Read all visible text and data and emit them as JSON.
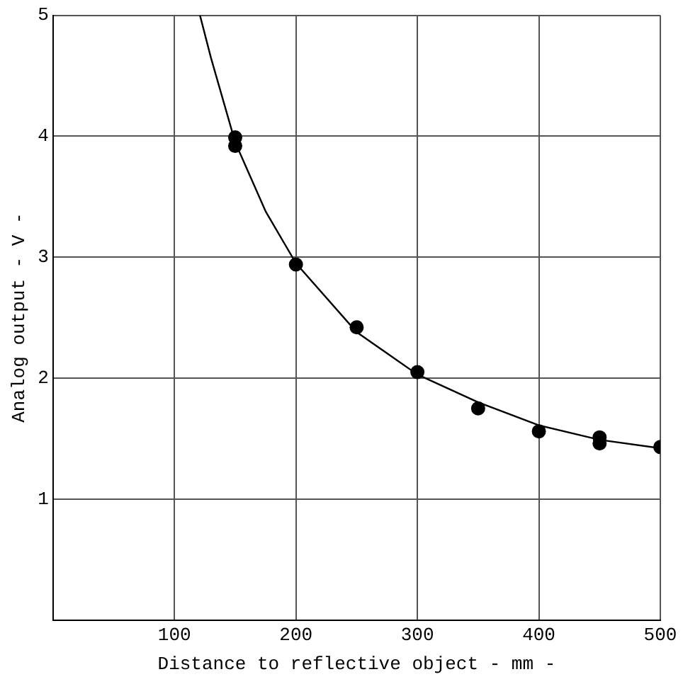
{
  "chart_data": {
    "type": "scatter",
    "xlabel": "Distance to reflective object - mm -",
    "ylabel": "Analog output - V -",
    "xlim": [
      0,
      500
    ],
    "ylim": [
      0,
      5
    ],
    "xticks": [
      100,
      200,
      300,
      400,
      500
    ],
    "yticks": [
      1,
      2,
      3,
      4,
      5
    ],
    "grid": true,
    "legend": false,
    "series": [
      {
        "color": "#000000",
        "marker": "circle",
        "x": [
          150,
          150,
          200,
          250,
          300,
          350,
          400,
          450,
          450,
          500
        ],
        "values": [
          3.99,
          3.92,
          2.94,
          2.42,
          2.05,
          1.75,
          1.56,
          1.51,
          1.46,
          1.43
        ]
      },
      {
        "type": "line",
        "color": "#000000",
        "marker": "none",
        "line_style": "solid",
        "x": [
          121,
          130,
          150,
          175,
          200,
          250,
          300,
          350,
          400,
          450,
          500
        ],
        "values": [
          5.0,
          4.65,
          3.95,
          3.38,
          2.95,
          2.38,
          2.03,
          1.8,
          1.61,
          1.49,
          1.42
        ]
      }
    ]
  }
}
